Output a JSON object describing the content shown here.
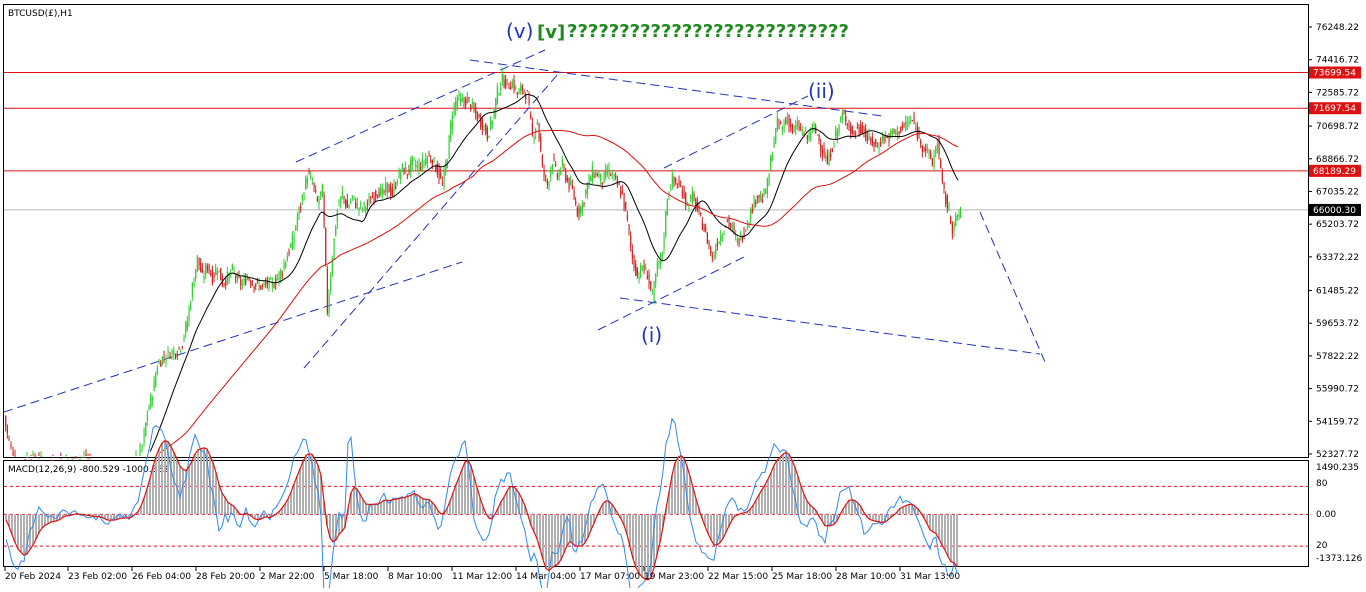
{
  "header": {
    "symbol": "BTCUSD(£),H1",
    "macd_label": "MACD(12,26,9) -800.529 -1000.382"
  },
  "annotations": {
    "wave_v": "(v)",
    "wave_v_big": "[v]",
    "question_marks": "???????????????????????????",
    "wave_i": "(i)",
    "wave_ii": "(ii)"
  },
  "colors": {
    "bull_candle": "#33cc33",
    "bear_candle": "#cc2222",
    "level_line": "#dd1111",
    "trend_line": "#2233bb",
    "ma_fast": "#000000",
    "ma_slow": "#dd1111",
    "macd_line": "#3388ee",
    "macd_hist": "#b0b0b0",
    "macd_signal": "#dd1111",
    "current_price_bg": "#000000",
    "level_label_bg": "#dd1111"
  },
  "chart_data": {
    "type": "candlestick",
    "title": "BTCUSD(£),H1",
    "price_axis_ticks": [
      "76248.22",
      "74416.72",
      "72585.72",
      "70698.72",
      "68866.72",
      "67035.22",
      "65203.72",
      "63372.22",
      "61485.22",
      "59653.72",
      "57822.22",
      "55990.72",
      "54159.72",
      "52327.72"
    ],
    "ylim": [
      52327.72,
      77300
    ],
    "time_axis_ticks": [
      "20 Feb 2024",
      "23 Feb 02:00",
      "26 Feb 04:00",
      "28 Feb 20:00",
      "2 Mar 22:00",
      "5 Mar 18:00",
      "8 Mar 10:00",
      "11 Mar 12:00",
      "14 Mar 04:00",
      "17 Mar 07:00",
      "19 Mar 23:00",
      "22 Mar 15:00",
      "25 Mar 18:00",
      "28 Mar 10:00",
      "31 Mar 13:00"
    ],
    "horizontal_levels": [
      {
        "label": "73699.54",
        "value": 73699.54
      },
      {
        "label": "71697.54",
        "value": 71697.54
      },
      {
        "label": "68189.29",
        "value": 68189.29
      }
    ],
    "current_price": {
      "label": "66000.30",
      "value": 66000.3
    },
    "macd_axis_ticks": [
      "1490.235",
      "80",
      "0.00",
      "20",
      "-1373.126"
    ],
    "macd_params": "MACD(12,26,9)",
    "macd_main": -800.529,
    "macd_signal": -1000.382,
    "wave_labels": [
      "(v)",
      "[v]",
      "(i)",
      "(ii)"
    ],
    "price_path": [
      {
        "x": 0,
        "y": 55000
      },
      {
        "x": 5,
        "y": 53400
      },
      {
        "x": 15,
        "y": 51500
      },
      {
        "x": 25,
        "y": 52100
      },
      {
        "x": 35,
        "y": 52000
      },
      {
        "x": 45,
        "y": 51800
      },
      {
        "x": 55,
        "y": 51900
      },
      {
        "x": 62,
        "y": 52100
      },
      {
        "x": 70,
        "y": 51900
      },
      {
        "x": 80,
        "y": 52150
      },
      {
        "x": 90,
        "y": 51700
      },
      {
        "x": 100,
        "y": 51800
      },
      {
        "x": 110,
        "y": 51500
      },
      {
        "x": 120,
        "y": 51600
      },
      {
        "x": 130,
        "y": 51400
      },
      {
        "x": 140,
        "y": 52800
      },
      {
        "x": 145,
        "y": 54600
      },
      {
        "x": 150,
        "y": 55800
      },
      {
        "x": 155,
        "y": 57300
      },
      {
        "x": 160,
        "y": 57700
      },
      {
        "x": 168,
        "y": 58000
      },
      {
        "x": 175,
        "y": 58100
      },
      {
        "x": 180,
        "y": 58600
      },
      {
        "x": 185,
        "y": 59800
      },
      {
        "x": 190,
        "y": 61700
      },
      {
        "x": 195,
        "y": 63300
      },
      {
        "x": 200,
        "y": 62200
      },
      {
        "x": 205,
        "y": 62900
      },
      {
        "x": 210,
        "y": 62200
      },
      {
        "x": 215,
        "y": 62800
      },
      {
        "x": 220,
        "y": 61900
      },
      {
        "x": 225,
        "y": 62200
      },
      {
        "x": 230,
        "y": 62600
      },
      {
        "x": 235,
        "y": 62100
      },
      {
        "x": 240,
        "y": 61800
      },
      {
        "x": 245,
        "y": 62300
      },
      {
        "x": 250,
        "y": 61900
      },
      {
        "x": 255,
        "y": 61800
      },
      {
        "x": 260,
        "y": 61700
      },
      {
        "x": 265,
        "y": 61900
      },
      {
        "x": 270,
        "y": 61800
      },
      {
        "x": 275,
        "y": 62200
      },
      {
        "x": 280,
        "y": 62700
      },
      {
        "x": 285,
        "y": 63500
      },
      {
        "x": 290,
        "y": 64200
      },
      {
        "x": 295,
        "y": 65600
      },
      {
        "x": 300,
        "y": 66700
      },
      {
        "x": 305,
        "y": 68000
      },
      {
        "x": 310,
        "y": 67500
      },
      {
        "x": 315,
        "y": 66400
      },
      {
        "x": 320,
        "y": 67100
      },
      {
        "x": 325,
        "y": 60400
      },
      {
        "x": 330,
        "y": 63500
      },
      {
        "x": 335,
        "y": 66000
      },
      {
        "x": 340,
        "y": 66900
      },
      {
        "x": 345,
        "y": 66100
      },
      {
        "x": 350,
        "y": 66700
      },
      {
        "x": 355,
        "y": 66200
      },
      {
        "x": 360,
        "y": 66100
      },
      {
        "x": 365,
        "y": 66300
      },
      {
        "x": 370,
        "y": 66700
      },
      {
        "x": 375,
        "y": 67100
      },
      {
        "x": 380,
        "y": 66900
      },
      {
        "x": 385,
        "y": 67300
      },
      {
        "x": 390,
        "y": 66900
      },
      {
        "x": 395,
        "y": 67800
      },
      {
        "x": 400,
        "y": 68300
      },
      {
        "x": 405,
        "y": 68100
      },
      {
        "x": 410,
        "y": 68700
      },
      {
        "x": 415,
        "y": 68400
      },
      {
        "x": 420,
        "y": 68600
      },
      {
        "x": 425,
        "y": 69000
      },
      {
        "x": 430,
        "y": 68800
      },
      {
        "x": 435,
        "y": 68200
      },
      {
        "x": 440,
        "y": 67400
      },
      {
        "x": 445,
        "y": 69100
      },
      {
        "x": 450,
        "y": 71500
      },
      {
        "x": 455,
        "y": 72300
      },
      {
        "x": 460,
        "y": 72000
      },
      {
        "x": 465,
        "y": 72200
      },
      {
        "x": 470,
        "y": 71700
      },
      {
        "x": 475,
        "y": 71200
      },
      {
        "x": 480,
        "y": 70800
      },
      {
        "x": 485,
        "y": 70200
      },
      {
        "x": 490,
        "y": 71100
      },
      {
        "x": 495,
        "y": 72600
      },
      {
        "x": 500,
        "y": 73300
      },
      {
        "x": 505,
        "y": 73000
      },
      {
        "x": 510,
        "y": 73100
      },
      {
        "x": 515,
        "y": 72500
      },
      {
        "x": 520,
        "y": 72800
      },
      {
        "x": 525,
        "y": 72400
      },
      {
        "x": 530,
        "y": 70100
      },
      {
        "x": 535,
        "y": 71000
      },
      {
        "x": 540,
        "y": 68300
      },
      {
        "x": 545,
        "y": 67400
      },
      {
        "x": 550,
        "y": 68800
      },
      {
        "x": 555,
        "y": 67900
      },
      {
        "x": 560,
        "y": 68500
      },
      {
        "x": 565,
        "y": 67600
      },
      {
        "x": 570,
        "y": 67100
      },
      {
        "x": 575,
        "y": 65900
      },
      {
        "x": 580,
        "y": 66300
      },
      {
        "x": 585,
        "y": 67400
      },
      {
        "x": 590,
        "y": 68100
      },
      {
        "x": 595,
        "y": 68000
      },
      {
        "x": 600,
        "y": 67600
      },
      {
        "x": 605,
        "y": 68200
      },
      {
        "x": 610,
        "y": 67900
      },
      {
        "x": 615,
        "y": 67400
      },
      {
        "x": 620,
        "y": 66800
      },
      {
        "x": 625,
        "y": 65300
      },
      {
        "x": 630,
        "y": 63300
      },
      {
        "x": 635,
        "y": 62300
      },
      {
        "x": 640,
        "y": 62800
      },
      {
        "x": 645,
        "y": 62400
      },
      {
        "x": 650,
        "y": 61100
      },
      {
        "x": 655,
        "y": 62800
      },
      {
        "x": 660,
        "y": 63600
      },
      {
        "x": 665,
        "y": 66800
      },
      {
        "x": 670,
        "y": 67700
      },
      {
        "x": 675,
        "y": 67400
      },
      {
        "x": 680,
        "y": 67100
      },
      {
        "x": 685,
        "y": 66200
      },
      {
        "x": 690,
        "y": 66800
      },
      {
        "x": 695,
        "y": 66000
      },
      {
        "x": 700,
        "y": 65200
      },
      {
        "x": 705,
        "y": 64300
      },
      {
        "x": 710,
        "y": 63300
      },
      {
        "x": 715,
        "y": 64200
      },
      {
        "x": 720,
        "y": 64800
      },
      {
        "x": 725,
        "y": 65400
      },
      {
        "x": 730,
        "y": 64900
      },
      {
        "x": 735,
        "y": 64200
      },
      {
        "x": 740,
        "y": 64600
      },
      {
        "x": 745,
        "y": 65300
      },
      {
        "x": 750,
        "y": 66200
      },
      {
        "x": 755,
        "y": 66900
      },
      {
        "x": 760,
        "y": 66600
      },
      {
        "x": 765,
        "y": 67400
      },
      {
        "x": 770,
        "y": 69400
      },
      {
        "x": 775,
        "y": 70900
      },
      {
        "x": 780,
        "y": 70600
      },
      {
        "x": 785,
        "y": 71200
      },
      {
        "x": 790,
        "y": 70400
      },
      {
        "x": 795,
        "y": 70700
      },
      {
        "x": 800,
        "y": 70400
      },
      {
        "x": 805,
        "y": 70000
      },
      {
        "x": 810,
        "y": 70600
      },
      {
        "x": 815,
        "y": 70200
      },
      {
        "x": 820,
        "y": 69300
      },
      {
        "x": 825,
        "y": 68600
      },
      {
        "x": 830,
        "y": 69600
      },
      {
        "x": 835,
        "y": 70500
      },
      {
        "x": 840,
        "y": 71300
      },
      {
        "x": 845,
        "y": 71000
      },
      {
        "x": 850,
        "y": 70200
      },
      {
        "x": 855,
        "y": 70500
      },
      {
        "x": 860,
        "y": 70600
      },
      {
        "x": 865,
        "y": 70000
      },
      {
        "x": 870,
        "y": 69800
      },
      {
        "x": 875,
        "y": 69500
      },
      {
        "x": 880,
        "y": 70100
      },
      {
        "x": 885,
        "y": 70000
      },
      {
        "x": 890,
        "y": 70300
      },
      {
        "x": 895,
        "y": 70400
      },
      {
        "x": 900,
        "y": 70600
      },
      {
        "x": 905,
        "y": 70900
      },
      {
        "x": 910,
        "y": 71000
      },
      {
        "x": 915,
        "y": 70300
      },
      {
        "x": 920,
        "y": 69600
      },
      {
        "x": 925,
        "y": 69300
      },
      {
        "x": 930,
        "y": 68600
      },
      {
        "x": 935,
        "y": 69900
      },
      {
        "x": 940,
        "y": 67300
      },
      {
        "x": 945,
        "y": 66200
      },
      {
        "x": 950,
        "y": 65000
      },
      {
        "x": 955,
        "y": 65600
      },
      {
        "x": 958,
        "y": 66000
      }
    ]
  }
}
